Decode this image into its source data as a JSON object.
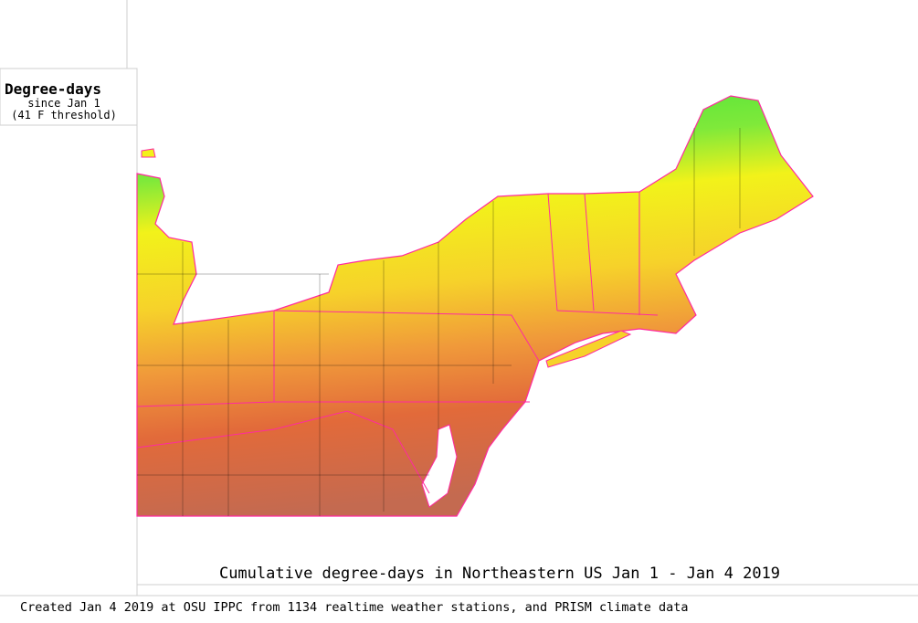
{
  "legend": {
    "title": "Degree-days",
    "subtitle": "since Jan 1",
    "threshold": "(41 F threshold)"
  },
  "caption": "Cumulative degree-days in Northeastern US Jan 1 - Jan 4 2019",
  "footer": "Created Jan 4 2019 at OSU IPPC from 1134 realtime weather stations, and PRISM climate data"
}
